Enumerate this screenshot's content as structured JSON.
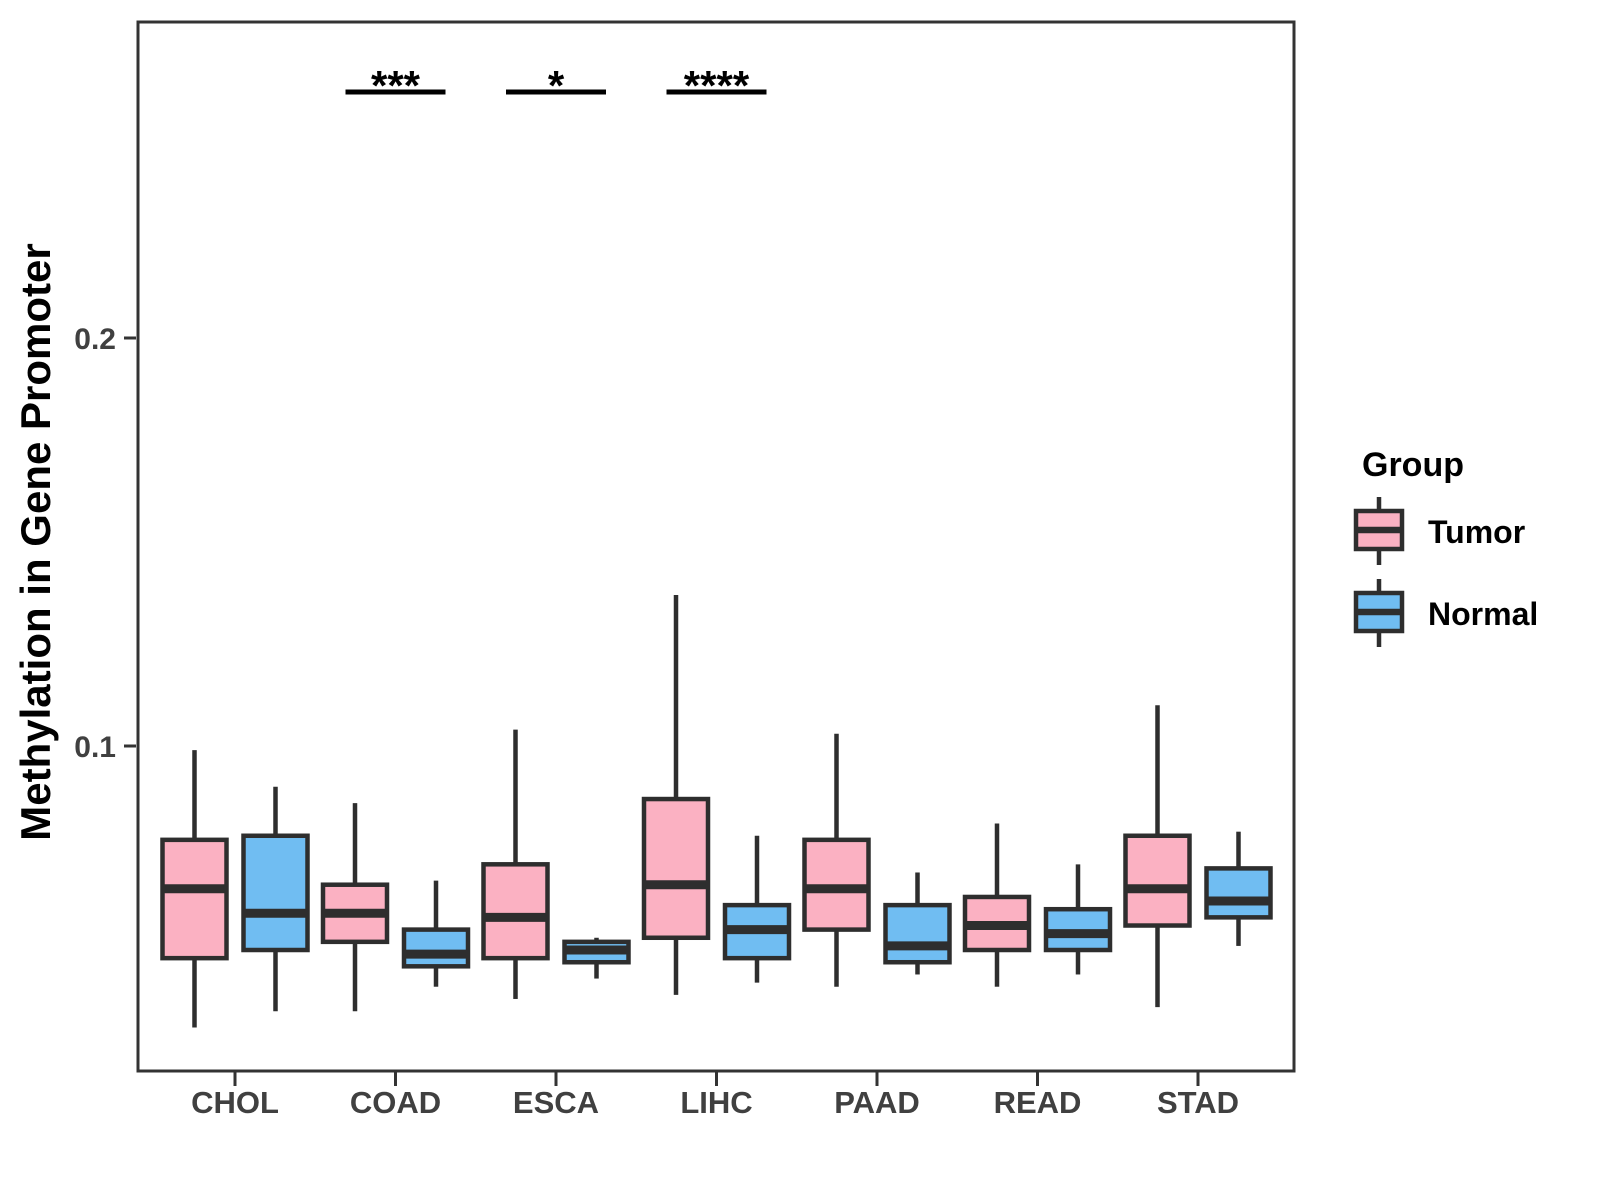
{
  "figure": {
    "background": "#FFFFFF"
  },
  "legend": {
    "title": "Group",
    "items": [
      {
        "label": "Tumor",
        "color": "#FBB1C2"
      },
      {
        "label": "Normal",
        "color": "#70BDF2"
      }
    ]
  },
  "style": {
    "box_stroke": "#2E2E2E",
    "axis_stroke": "#333333",
    "axis_text_color": "#404040",
    "significance_color": "#000000"
  },
  "chart_data": {
    "type": "boxplot",
    "title": "",
    "xlabel": "",
    "ylabel": "Methylation in Gene Promoter",
    "categories": [
      "CHOL",
      "COAD",
      "ESCA",
      "LIHC",
      "PAAD",
      "READ",
      "STAD"
    ],
    "yticks": [
      0.1,
      0.2
    ],
    "ylim": [
      0.02,
      0.277
    ],
    "grid": false,
    "legend_position": "right",
    "series": [
      {
        "name": "Tumor",
        "color": "#FBB1C2",
        "boxes": [
          {
            "category": "CHOL",
            "whisker_low": 0.031,
            "q1": 0.048,
            "median": 0.065,
            "q3": 0.077,
            "whisker_high": 0.099
          },
          {
            "category": "COAD",
            "whisker_low": 0.035,
            "q1": 0.052,
            "median": 0.059,
            "q3": 0.066,
            "whisker_high": 0.086
          },
          {
            "category": "ESCA",
            "whisker_low": 0.038,
            "q1": 0.048,
            "median": 0.058,
            "q3": 0.071,
            "whisker_high": 0.104
          },
          {
            "category": "LIHC",
            "whisker_low": 0.039,
            "q1": 0.053,
            "median": 0.066,
            "q3": 0.087,
            "whisker_high": 0.137
          },
          {
            "category": "PAAD",
            "whisker_low": 0.041,
            "q1": 0.055,
            "median": 0.065,
            "q3": 0.077,
            "whisker_high": 0.103
          },
          {
            "category": "READ",
            "whisker_low": 0.041,
            "q1": 0.05,
            "median": 0.056,
            "q3": 0.063,
            "whisker_high": 0.081
          },
          {
            "category": "STAD",
            "whisker_low": 0.036,
            "q1": 0.056,
            "median": 0.065,
            "q3": 0.078,
            "whisker_high": 0.11
          }
        ]
      },
      {
        "name": "Normal",
        "color": "#70BDF2",
        "boxes": [
          {
            "category": "CHOL",
            "whisker_low": 0.035,
            "q1": 0.05,
            "median": 0.059,
            "q3": 0.078,
            "whisker_high": 0.09
          },
          {
            "category": "COAD",
            "whisker_low": 0.041,
            "q1": 0.046,
            "median": 0.049,
            "q3": 0.055,
            "whisker_high": 0.067
          },
          {
            "category": "ESCA",
            "whisker_low": 0.043,
            "q1": 0.047,
            "median": 0.05,
            "q3": 0.052,
            "whisker_high": 0.053
          },
          {
            "category": "LIHC",
            "whisker_low": 0.042,
            "q1": 0.048,
            "median": 0.055,
            "q3": 0.061,
            "whisker_high": 0.078
          },
          {
            "category": "PAAD",
            "whisker_low": 0.044,
            "q1": 0.047,
            "median": 0.051,
            "q3": 0.061,
            "whisker_high": 0.069
          },
          {
            "category": "READ",
            "whisker_low": 0.044,
            "q1": 0.05,
            "median": 0.054,
            "q3": 0.06,
            "whisker_high": 0.071
          },
          {
            "category": "STAD",
            "whisker_low": 0.051,
            "q1": 0.058,
            "median": 0.062,
            "q3": 0.07,
            "whisker_high": 0.079
          }
        ]
      }
    ],
    "significance": [
      {
        "category": "COAD",
        "label": "***"
      },
      {
        "category": "ESCA",
        "label": "*"
      },
      {
        "category": "LIHC",
        "label": "****"
      }
    ]
  }
}
